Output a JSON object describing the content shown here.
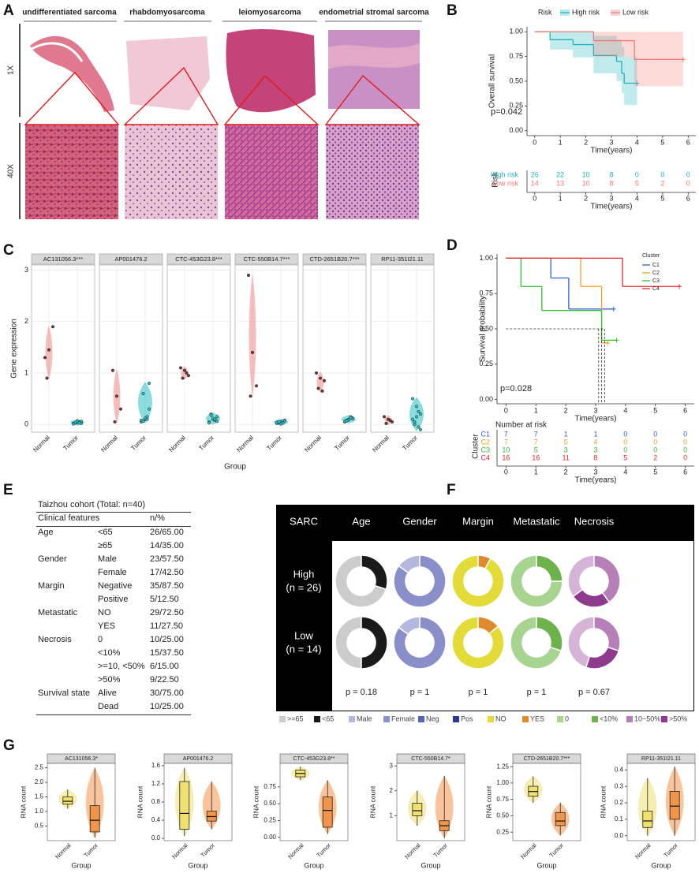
{
  "histology": {
    "panel": "A",
    "columns": [
      "undifferentiated sarcoma",
      "rhabdomyosarcoma",
      "leiomyosarcoma",
      "endometrial stromal sarcoma"
    ],
    "rows": [
      "1X",
      "40X"
    ]
  },
  "table": {
    "panel": "E",
    "title": "Taizhou cohort (Total: n=40)",
    "header": [
      "Clinical features",
      "n/%"
    ],
    "groups": [
      {
        "feature": "Age",
        "items": [
          [
            "<65",
            "26/65.00"
          ],
          [
            "≥65",
            "14/35.00"
          ]
        ]
      },
      {
        "feature": "Gender",
        "items": [
          [
            "Male",
            "23/57.50"
          ],
          [
            "Female",
            "17/42.50"
          ]
        ]
      },
      {
        "feature": "Margin",
        "items": [
          [
            "Negative",
            "35/87.50"
          ],
          [
            "Positive",
            "5/12.50"
          ]
        ]
      },
      {
        "feature": "Metastatic",
        "items": [
          [
            "NO",
            "29/72.50"
          ],
          [
            "YES",
            "11/27.50"
          ]
        ]
      },
      {
        "feature": "Necrosis",
        "items": [
          [
            "0",
            "10/25.00"
          ],
          [
            "<10%",
            "15/37.50"
          ],
          [
            ">=10, <50%",
            "6/15.00"
          ],
          [
            ">50%",
            "9/22.50"
          ]
        ]
      },
      {
        "feature": "Survival state",
        "items": [
          [
            "Alive",
            "30/75.00"
          ],
          [
            "Dead",
            "10/25.00"
          ]
        ]
      }
    ]
  },
  "chart_data": [
    {
      "type": "km",
      "panel": "B",
      "legend_title": "Risk",
      "ylabel": "Overall survival",
      "xlabel": "Time(years)",
      "annotation": "p=0.042",
      "xlim": [
        -0.3,
        6.3
      ],
      "xticks": [
        0,
        1,
        2,
        3,
        4,
        5,
        6
      ],
      "ylim": [
        -0.05,
        1.05
      ],
      "yticks": [
        {
          "value": 0,
          "label": "0.00"
        },
        0.25,
        {
          "value": 0.5,
          "label": "0.50"
        },
        0.75,
        {
          "value": 1,
          "label": "1.00"
        }
      ],
      "series": [
        {
          "name": "High risk",
          "color": "#1fb3bd",
          "x": [
            0,
            0.6,
            1.5,
            2.3,
            3.2,
            3.4,
            3.5,
            4.0
          ],
          "values": [
            1,
            0.92,
            0.87,
            0.76,
            0.7,
            0.58,
            0.48,
            0.48
          ],
          "lower": [
            1,
            0.82,
            0.74,
            0.58,
            0.5,
            0.38,
            0.26,
            0.26
          ],
          "upper": [
            1,
            1,
            1,
            0.96,
            0.92,
            0.85,
            0.75,
            0.75
          ]
        },
        {
          "name": "Low risk",
          "color": "#f07a72",
          "x": [
            0,
            2.3,
            3.9,
            5.8
          ],
          "values": [
            1,
            0.91,
            0.72,
            0.72
          ],
          "lower": [
            1,
            0.75,
            0.45,
            0.45
          ],
          "upper": [
            1,
            1,
            1,
            1
          ]
        }
      ],
      "risk_table": {
        "title": "Risk",
        "xlabel": "Time(years)",
        "xticks": [
          0,
          1,
          2,
          3,
          4,
          5,
          6
        ],
        "rows": [
          {
            "name": "High risk",
            "values": [
              26,
              22,
              10,
              8,
              0,
              0,
              0
            ]
          },
          {
            "name": "Low risk",
            "values": [
              14,
              13,
              10,
              8,
              5,
              2,
              0
            ]
          }
        ]
      }
    },
    {
      "type": "dot_violin",
      "panel": "C",
      "xlabel": "Group",
      "ylabel": "Gene expression",
      "categories": [
        "Normal",
        "Tumor"
      ],
      "colors": [
        "#f08a84",
        "#2cc0c4"
      ],
      "ylim": [
        -0.15,
        3.1
      ],
      "yticks": [
        0,
        1,
        2,
        3
      ],
      "facets": [
        {
          "title": "AC131056.3***",
          "values": [
            [
              1.3,
              1.45,
              1.9,
              0.9
            ],
            [
              0.02,
              0.04,
              0.06,
              0.03,
              0.05,
              0.01,
              0.07,
              0.02,
              0.04,
              0.03
            ]
          ]
        },
        {
          "title": "AP001476.2",
          "values": [
            [
              1.05,
              0.55,
              0.3,
              0.05
            ],
            [
              0.05,
              0.1,
              0.8,
              0.6,
              0.15,
              0.08,
              0.12,
              0.3,
              0.06,
              0.1
            ]
          ]
        },
        {
          "title": "CTC-453G23.8***",
          "values": [
            [
              1.1,
              1.05,
              0.95,
              0.9,
              1.0
            ],
            [
              0.05,
              0.1,
              0.15,
              0.2,
              0.08,
              0.03,
              0.12,
              0.06,
              0.18,
              0.1
            ]
          ]
        },
        {
          "title": "CTC-550B14.7***",
          "values": [
            [
              2.9,
              1.4,
              0.75,
              0.55
            ],
            [
              0.02,
              0.05,
              0.08,
              0.03,
              0.06,
              0.04,
              0.01,
              0.07,
              0.05,
              0.03
            ]
          ]
        },
        {
          "title": "CTD-2651B20.7***",
          "values": [
            [
              1.0,
              0.9,
              0.85,
              0.7,
              0.65
            ],
            [
              0.05,
              0.1,
              0.12,
              0.08,
              0.15,
              0.06,
              0.09,
              0.11,
              0.07,
              0.13
            ]
          ]
        },
        {
          "title": "RP11-351I21.11",
          "values": [
            [
              0.15,
              0.1,
              0.05,
              0.02,
              0.08
            ],
            [
              0.5,
              0.35,
              0.2,
              0.05,
              -0.05,
              0.1,
              0.15,
              -0.1,
              0.0,
              0.25
            ]
          ]
        }
      ]
    },
    {
      "type": "km",
      "panel": "D",
      "legend_title": "Cluster",
      "ylabel": "Survival probability",
      "xlabel": "Time(years)",
      "annotation": "p=0.028",
      "xlim": [
        -0.3,
        6.3
      ],
      "xticks": [
        0,
        1,
        2,
        3,
        4,
        5,
        6
      ],
      "ylim": [
        -0.03,
        1.03
      ],
      "yticks": [
        {
          "value": 0,
          "label": "0.00"
        },
        0.25,
        {
          "value": 0.5,
          "label": "0.50"
        },
        0.75,
        {
          "value": 1,
          "label": "1.00"
        }
      ],
      "median_line": {
        "y": 0.5,
        "x": [
          3.1,
          3.2,
          3.3
        ]
      },
      "series": [
        {
          "name": "C1",
          "color": "#2a5fd6",
          "x": [
            0,
            1.5,
            2.1,
            3.6
          ],
          "values": [
            1,
            0.86,
            0.64,
            0.64
          ]
        },
        {
          "name": "C2",
          "color": "#f0a020",
          "x": [
            0,
            2.5,
            3.2,
            3.4
          ],
          "values": [
            1,
            0.8,
            0.4,
            0.4
          ]
        },
        {
          "name": "C3",
          "color": "#2fbf2f",
          "x": [
            0,
            0.5,
            1.2,
            3.2,
            3.7
          ],
          "values": [
            1,
            0.8,
            0.63,
            0.42,
            0.42
          ]
        },
        {
          "name": "C4",
          "color": "#e8262b",
          "x": [
            0,
            3.9,
            5.8
          ],
          "values": [
            1,
            0.8,
            0.8
          ]
        }
      ],
      "risk_table": {
        "heading": "Number at risk",
        "title": "Cluster",
        "xlabel": "Time(years)",
        "xticks": [
          0,
          1,
          2,
          3,
          4,
          5,
          6
        ],
        "rows": [
          {
            "name": "C1",
            "values": [
              7,
              7,
              1,
              1,
              0,
              0,
              0
            ]
          },
          {
            "name": "C2",
            "values": [
              7,
              7,
              5,
              4,
              0,
              0,
              0
            ]
          },
          {
            "name": "C3",
            "values": [
              10,
              5,
              3,
              3,
              0,
              0,
              0
            ]
          },
          {
            "name": "C4",
            "values": [
              16,
              16,
              11,
              8,
              5,
              2,
              0
            ]
          }
        ]
      }
    },
    {
      "type": "donut_grid",
      "panel": "F",
      "corner": "SARC",
      "columns": [
        "Age",
        "Gender",
        "Margin",
        "Metastatic",
        "Necrosis"
      ],
      "colors": [
        [
          "#cccccc",
          "#1a1a1a"
        ],
        [
          "#b4b8de",
          "#8a8fc9"
        ],
        [
          "#e3dc38",
          "#e08a2e"
        ],
        [
          "#a7d590",
          "#6cb34c"
        ],
        [
          "#d6b4d8",
          "#8e3b8e",
          "#b67fb8"
        ]
      ],
      "rows": [
        {
          "label": [
            "High",
            "(n = 26)"
          ],
          "values": [
            [
              70,
              30
            ],
            [
              15,
              85
            ],
            [
              92,
              8
            ],
            [
              75,
              25
            ],
            [
              35,
              25,
              40
            ]
          ]
        },
        {
          "label": [
            "Low",
            "(n = 14)"
          ],
          "values": [
            [
              50,
              50
            ],
            [
              15,
              85
            ],
            [
              86,
              14
            ],
            [
              70,
              30
            ],
            [
              45,
              25,
              30
            ]
          ]
        }
      ],
      "p_values": [
        "p = 0.18",
        "p = 1",
        "p = 1",
        "p = 1",
        "p = 0.67"
      ],
      "legend": [
        {
          "name": ">=65",
          "color": "#cccccc"
        },
        {
          "name": "<65",
          "color": "#1a1a1a"
        },
        {
          "name": "Male",
          "color": "#b4b8de"
        },
        {
          "name": "Female",
          "color": "#8a8fc9"
        },
        {
          "name": "Neg",
          "color": "#5a63b3"
        },
        {
          "name": "Pos",
          "color": "#2b3990"
        },
        {
          "name": "NO",
          "color": "#e3dc38"
        },
        {
          "name": "YES",
          "color": "#e08a2e"
        },
        {
          "name": "0",
          "color": "#a7d590"
        },
        {
          "name": "<10%",
          "color": "#6cb34c"
        },
        {
          "name": "10−50%",
          "color": "#b67fb8"
        },
        {
          "name": ">50%",
          "color": "#8e3b8e"
        }
      ]
    },
    {
      "type": "box_violin",
      "panel": "G",
      "xlabel": "Group",
      "ylabel": "RNA count",
      "categories": [
        "Normal",
        "Tumor"
      ],
      "colors": [
        "#f7efb0",
        "#f9c49c"
      ],
      "box_colors": [
        "#f0e070",
        "#f0954a"
      ],
      "facets": [
        {
          "title": "AC131056.3*",
          "ylim": [
            0,
            2.65
          ],
          "yticks": [
            0.5,
            {
              "value": 1,
              "label": "1.0"
            },
            1.5,
            {
              "value": 2,
              "label": "2.0"
            },
            2.5
          ],
          "values": [
            [
              1.1,
              1.25,
              1.35,
              1.5,
              1.75
            ],
            [
              0.1,
              0.3,
              0.7,
              1.2,
              2.5
            ]
          ]
        },
        {
          "title": "AP001476.2",
          "ylim": [
            -0.05,
            1.65
          ],
          "yticks": [
            {
              "value": 0,
              "label": "0.0"
            },
            0.4,
            0.8,
            1.2,
            1.6
          ],
          "values": [
            [
              0.05,
              0.2,
              0.55,
              1.25,
              1.55
            ],
            [
              0.2,
              0.38,
              0.48,
              0.6,
              1.25
            ]
          ]
        },
        {
          "title": "CTC-453G23.8**",
          "ylim": [
            -0.05,
            1.1
          ],
          "yticks": [
            {
              "value": 0,
              "label": "0.00"
            },
            0.25,
            {
              "value": 0.5,
              "label": "0.50"
            },
            0.75
          ],
          "values": [
            [
              0.85,
              0.9,
              0.95,
              1.0,
              1.05
            ],
            [
              0.05,
              0.15,
              0.4,
              0.6,
              0.85
            ]
          ]
        },
        {
          "title": "CTC-550B14.7*",
          "ylim": [
            0,
            3.1
          ],
          "yticks": [
            1,
            2,
            3
          ],
          "values": [
            [
              0.6,
              1.0,
              1.2,
              1.5,
              2.0
            ],
            [
              0.1,
              0.4,
              0.6,
              0.8,
              2.6
            ]
          ]
        },
        {
          "title": "CTD-2651B20.7***",
          "ylim": [
            0.12,
            1.3
          ],
          "yticks": [
            0.25,
            {
              "value": 0.5,
              "label": "0.50"
            },
            0.75,
            {
              "value": 1,
              "label": "1.00"
            },
            1.25
          ],
          "values": [
            [
              0.7,
              0.8,
              0.87,
              0.95,
              1.1
            ],
            [
              0.2,
              0.35,
              0.42,
              0.55,
              0.7
            ]
          ]
        },
        {
          "title": "RP11-351I21.11",
          "ylim": [
            -0.03,
            0.44
          ],
          "yticks": [
            {
              "value": 0,
              "label": "0.0"
            },
            0.1,
            0.2,
            0.3,
            0.4
          ],
          "values": [
            [
              0.0,
              0.05,
              0.09,
              0.15,
              0.35
            ],
            [
              0.0,
              0.1,
              0.18,
              0.27,
              0.42
            ]
          ]
        }
      ]
    }
  ]
}
